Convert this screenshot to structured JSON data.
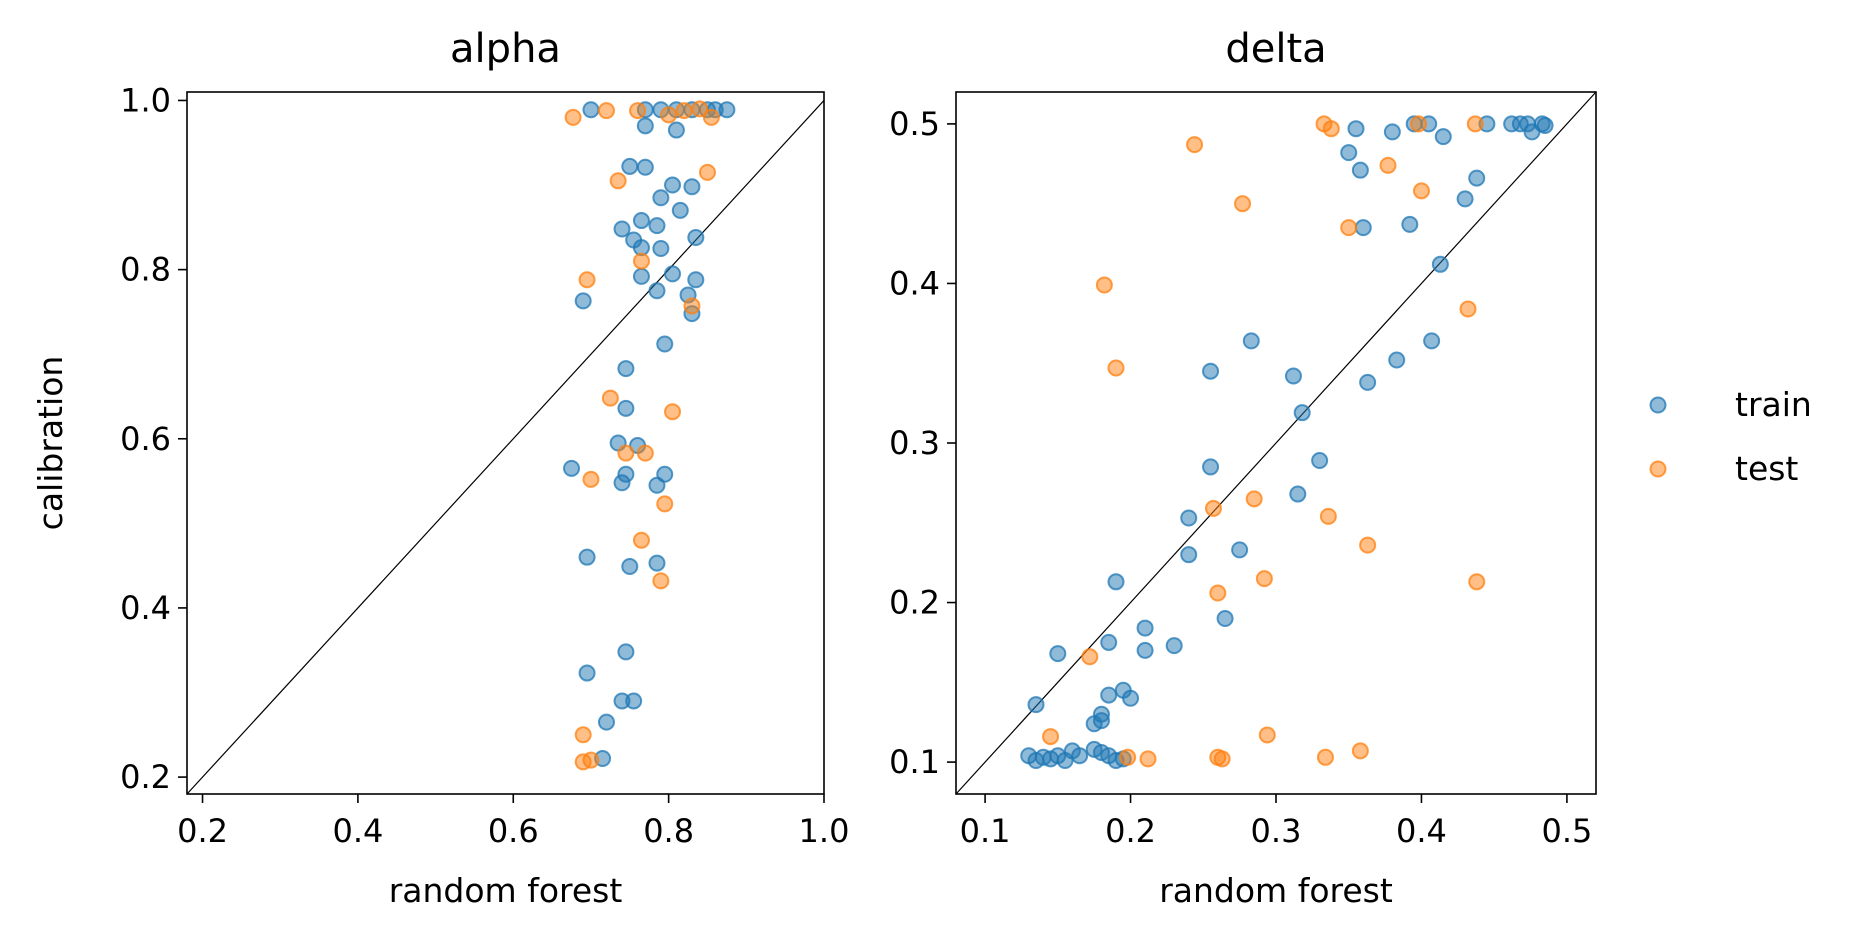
{
  "colors": {
    "train": "#1f77b4",
    "test": "#ff7f0e",
    "diagonal": "#000000"
  },
  "legend": {
    "position": "right",
    "items": [
      {
        "key": "train",
        "label": "train"
      },
      {
        "key": "test",
        "label": "test"
      }
    ]
  },
  "chart_data": [
    {
      "type": "scatter",
      "title": "alpha",
      "xlabel": "random forest",
      "ylabel": "calibration",
      "xlim": [
        0.18,
        1.0
      ],
      "ylim": [
        0.18,
        1.01
      ],
      "xticks": [
        "0.2",
        "0.4",
        "0.6",
        "0.8",
        "1.0"
      ],
      "yticks": [
        "0.2",
        "0.4",
        "0.6",
        "0.8",
        "1.0"
      ],
      "diagonal": true,
      "grid": false,
      "series": [
        {
          "name": "train",
          "points": [
            [
              0.7,
              0.989
            ],
            [
              0.77,
              0.989
            ],
            [
              0.79,
              0.989
            ],
            [
              0.81,
              0.989
            ],
            [
              0.83,
              0.989
            ],
            [
              0.85,
              0.989
            ],
            [
              0.86,
              0.989
            ],
            [
              0.875,
              0.989
            ],
            [
              0.77,
              0.97
            ],
            [
              0.81,
              0.965
            ],
            [
              0.75,
              0.922
            ],
            [
              0.77,
              0.921
            ],
            [
              0.805,
              0.9
            ],
            [
              0.83,
              0.898
            ],
            [
              0.79,
              0.885
            ],
            [
              0.815,
              0.87
            ],
            [
              0.765,
              0.858
            ],
            [
              0.74,
              0.848
            ],
            [
              0.785,
              0.852
            ],
            [
              0.755,
              0.835
            ],
            [
              0.835,
              0.838
            ],
            [
              0.765,
              0.826
            ],
            [
              0.79,
              0.825
            ],
            [
              0.765,
              0.792
            ],
            [
              0.805,
              0.795
            ],
            [
              0.835,
              0.788
            ],
            [
              0.69,
              0.763
            ],
            [
              0.785,
              0.775
            ],
            [
              0.825,
              0.77
            ],
            [
              0.83,
              0.748
            ],
            [
              0.795,
              0.712
            ],
            [
              0.745,
              0.683
            ],
            [
              0.745,
              0.636
            ],
            [
              0.735,
              0.595
            ],
            [
              0.76,
              0.592
            ],
            [
              0.675,
              0.565
            ],
            [
              0.745,
              0.558
            ],
            [
              0.795,
              0.558
            ],
            [
              0.74,
              0.548
            ],
            [
              0.785,
              0.545
            ],
            [
              0.695,
              0.46
            ],
            [
              0.785,
              0.453
            ],
            [
              0.75,
              0.449
            ],
            [
              0.745,
              0.348
            ],
            [
              0.695,
              0.323
            ],
            [
              0.74,
              0.29
            ],
            [
              0.755,
              0.29
            ],
            [
              0.72,
              0.265
            ],
            [
              0.715,
              0.222
            ]
          ]
        },
        {
          "name": "test",
          "points": [
            [
              0.677,
              0.98
            ],
            [
              0.72,
              0.988
            ],
            [
              0.76,
              0.988
            ],
            [
              0.8,
              0.983
            ],
            [
              0.82,
              0.988
            ],
            [
              0.84,
              0.99
            ],
            [
              0.855,
              0.98
            ],
            [
              0.735,
              0.905
            ],
            [
              0.85,
              0.915
            ],
            [
              0.765,
              0.81
            ],
            [
              0.695,
              0.788
            ],
            [
              0.83,
              0.757
            ],
            [
              0.725,
              0.648
            ],
            [
              0.805,
              0.632
            ],
            [
              0.745,
              0.583
            ],
            [
              0.77,
              0.583
            ],
            [
              0.7,
              0.552
            ],
            [
              0.795,
              0.523
            ],
            [
              0.765,
              0.48
            ],
            [
              0.79,
              0.432
            ],
            [
              0.69,
              0.25
            ],
            [
              0.69,
              0.218
            ],
            [
              0.7,
              0.22
            ]
          ]
        }
      ]
    },
    {
      "type": "scatter",
      "title": "delta",
      "xlabel": "random forest",
      "ylabel": "",
      "xlim": [
        0.08,
        0.52
      ],
      "ylim": [
        0.08,
        0.52
      ],
      "xticks": [
        "0.1",
        "0.2",
        "0.3",
        "0.4",
        "0.5"
      ],
      "yticks": [
        "0.1",
        "0.2",
        "0.3",
        "0.4",
        "0.5"
      ],
      "diagonal": true,
      "grid": false,
      "series": [
        {
          "name": "train",
          "points": [
            [
              0.13,
              0.104
            ],
            [
              0.135,
              0.101
            ],
            [
              0.14,
              0.103
            ],
            [
              0.145,
              0.102
            ],
            [
              0.15,
              0.104
            ],
            [
              0.155,
              0.101
            ],
            [
              0.16,
              0.107
            ],
            [
              0.165,
              0.104
            ],
            [
              0.175,
              0.108
            ],
            [
              0.18,
              0.106
            ],
            [
              0.185,
              0.104
            ],
            [
              0.19,
              0.101
            ],
            [
              0.195,
              0.102
            ],
            [
              0.135,
              0.136
            ],
            [
              0.15,
              0.168
            ],
            [
              0.175,
              0.124
            ],
            [
              0.18,
              0.126
            ],
            [
              0.18,
              0.13
            ],
            [
              0.185,
              0.142
            ],
            [
              0.195,
              0.145
            ],
            [
              0.2,
              0.14
            ],
            [
              0.185,
              0.175
            ],
            [
              0.19,
              0.213
            ],
            [
              0.21,
              0.184
            ],
            [
              0.21,
              0.17
            ],
            [
              0.23,
              0.173
            ],
            [
              0.24,
              0.253
            ],
            [
              0.24,
              0.23
            ],
            [
              0.255,
              0.285
            ],
            [
              0.255,
              0.345
            ],
            [
              0.265,
              0.19
            ],
            [
              0.275,
              0.233
            ],
            [
              0.283,
              0.364
            ],
            [
              0.312,
              0.342
            ],
            [
              0.315,
              0.268
            ],
            [
              0.318,
              0.319
            ],
            [
              0.33,
              0.289
            ],
            [
              0.35,
              0.482
            ],
            [
              0.355,
              0.497
            ],
            [
              0.358,
              0.471
            ],
            [
              0.36,
              0.435
            ],
            [
              0.363,
              0.338
            ],
            [
              0.38,
              0.495
            ],
            [
              0.383,
              0.352
            ],
            [
              0.392,
              0.437
            ],
            [
              0.395,
              0.5
            ],
            [
              0.405,
              0.5
            ],
            [
              0.407,
              0.364
            ],
            [
              0.413,
              0.412
            ],
            [
              0.415,
              0.492
            ],
            [
              0.43,
              0.453
            ],
            [
              0.438,
              0.466
            ],
            [
              0.445,
              0.5
            ],
            [
              0.462,
              0.5
            ],
            [
              0.468,
              0.5
            ],
            [
              0.473,
              0.5
            ],
            [
              0.476,
              0.495
            ],
            [
              0.483,
              0.5
            ],
            [
              0.485,
              0.499
            ]
          ]
        },
        {
          "name": "test",
          "points": [
            [
              0.145,
              0.116
            ],
            [
              0.172,
              0.166
            ],
            [
              0.182,
              0.399
            ],
            [
              0.19,
              0.347
            ],
            [
              0.198,
              0.103
            ],
            [
              0.212,
              0.102
            ],
            [
              0.244,
              0.487
            ],
            [
              0.257,
              0.259
            ],
            [
              0.26,
              0.206
            ],
            [
              0.26,
              0.103
            ],
            [
              0.263,
              0.102
            ],
            [
              0.277,
              0.45
            ],
            [
              0.285,
              0.265
            ],
            [
              0.292,
              0.215
            ],
            [
              0.294,
              0.117
            ],
            [
              0.333,
              0.5
            ],
            [
              0.334,
              0.103
            ],
            [
              0.336,
              0.254
            ],
            [
              0.338,
              0.497
            ],
            [
              0.35,
              0.435
            ],
            [
              0.358,
              0.107
            ],
            [
              0.363,
              0.236
            ],
            [
              0.377,
              0.474
            ],
            [
              0.398,
              0.5
            ],
            [
              0.4,
              0.458
            ],
            [
              0.432,
              0.384
            ],
            [
              0.437,
              0.5
            ],
            [
              0.438,
              0.213
            ]
          ]
        }
      ]
    }
  ]
}
